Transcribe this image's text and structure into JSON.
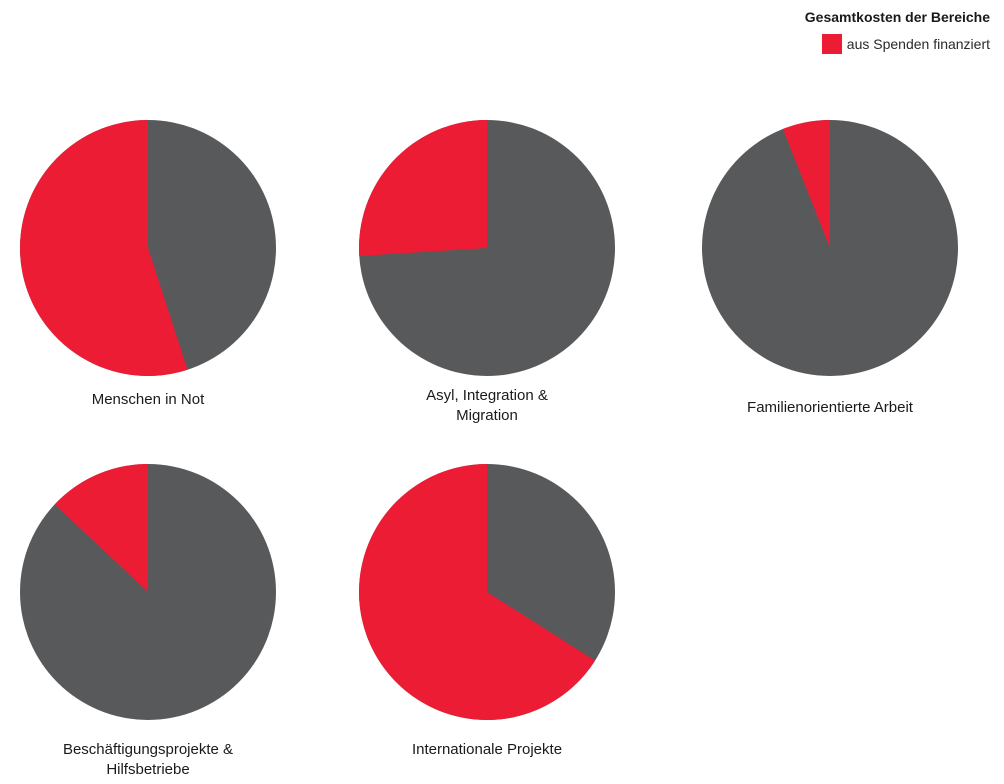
{
  "legend": {
    "title": "Gesamtkosten der Bereiche",
    "item_label": "aus Spenden finanziert",
    "item_color": "#ED1C35"
  },
  "colors": {
    "donation": "#ED1C35",
    "rest": "#58595B"
  },
  "chart_data": [
    {
      "type": "pie",
      "label": "Menschen in Not",
      "donation_share": 0.55
    },
    {
      "type": "pie",
      "label": "Asyl, Integration &\nMigration",
      "donation_share": 0.26
    },
    {
      "type": "pie",
      "label": "Familienorientierte Arbeit",
      "donation_share": 0.06
    },
    {
      "type": "pie",
      "label": "Beschäftigungsprojekte &\nHilfsbetriebe",
      "donation_share": 0.13
    },
    {
      "type": "pie",
      "label": "Internationale Projekte",
      "donation_share": 0.66
    }
  ]
}
